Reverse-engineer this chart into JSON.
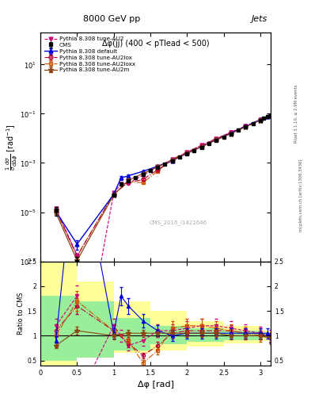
{
  "title_top": "8000 GeV pp",
  "title_right": "Jets",
  "plot_title": "Δφ(jj) (400 < pTlead < 500)",
  "xlabel": "Δφ [rad]",
  "ylabel_ratio": "Ratio to CMS",
  "watermark": "CMS_2016_I1421646",
  "right_label1": "Rivet 3.1.10, ≥ 2.9M events",
  "right_label2": "mcplots.cern.ch [arXiv:1306.3436]",
  "default_color": "#0000dd",
  "au2_color": "#cc0077",
  "au2lox_color": "#bb0033",
  "au2loxx_color": "#cc5500",
  "au2m_color": "#8B4513",
  "ylim_main": [
    1e-07,
    200.0
  ],
  "ylim_ratio": [
    0.4,
    2.5
  ],
  "xlim": [
    0.0,
    3.14159
  ]
}
